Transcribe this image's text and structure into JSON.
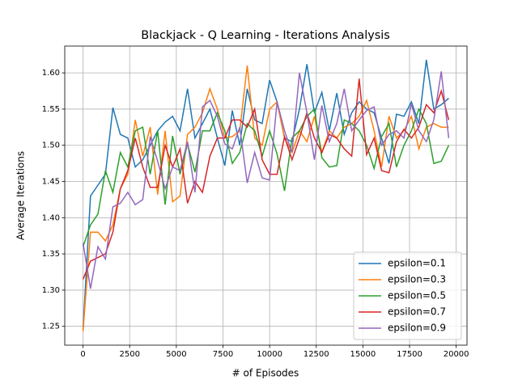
{
  "chart_data": {
    "type": "line",
    "title": "Blackjack - Q Learning - Iterations Analysis",
    "x_label": "# of Episodes",
    "y_label": "Average Iterations",
    "x": [
      0,
      400,
      800,
      1200,
      1600,
      2000,
      2400,
      2800,
      3200,
      3600,
      4000,
      4400,
      4800,
      5200,
      5600,
      6000,
      6400,
      6800,
      7200,
      7600,
      8000,
      8400,
      8800,
      9200,
      9600,
      10000,
      10400,
      10800,
      11200,
      11600,
      12000,
      12400,
      12800,
      13200,
      13600,
      14000,
      14400,
      14800,
      15200,
      15600,
      16000,
      16400,
      16800,
      17200,
      17600,
      18000,
      18400,
      18800,
      19200,
      19600
    ],
    "series": [
      {
        "name": "epsilon=0.1",
        "color": "#1f77b4",
        "values": [
          1.245,
          1.43,
          1.445,
          1.46,
          1.552,
          1.515,
          1.51,
          1.47,
          1.48,
          1.5,
          1.52,
          1.532,
          1.54,
          1.52,
          1.578,
          1.51,
          1.53,
          1.55,
          1.51,
          1.472,
          1.548,
          1.5,
          1.578,
          1.535,
          1.53,
          1.59,
          1.56,
          1.51,
          1.505,
          1.55,
          1.612,
          1.545,
          1.573,
          1.52,
          1.572,
          1.515,
          1.545,
          1.56,
          1.55,
          1.545,
          1.51,
          1.475,
          1.543,
          1.54,
          1.56,
          1.53,
          1.618,
          1.55,
          1.556,
          1.565
        ]
      },
      {
        "name": "epsilon=0.3",
        "color": "#ff7f0e",
        "values": [
          1.243,
          1.38,
          1.38,
          1.368,
          1.39,
          1.44,
          1.46,
          1.535,
          1.485,
          1.525,
          1.432,
          1.52,
          1.422,
          1.43,
          1.515,
          1.525,
          1.545,
          1.578,
          1.55,
          1.51,
          1.512,
          1.52,
          1.61,
          1.51,
          1.5,
          1.55,
          1.56,
          1.51,
          1.49,
          1.52,
          1.505,
          1.54,
          1.49,
          1.52,
          1.51,
          1.525,
          1.53,
          1.54,
          1.562,
          1.52,
          1.47,
          1.54,
          1.51,
          1.52,
          1.54,
          1.495,
          1.525,
          1.53,
          1.525,
          1.525
        ]
      },
      {
        "name": "epsilon=0.5",
        "color": "#2ca02c",
        "values": [
          1.36,
          1.39,
          1.405,
          1.465,
          1.435,
          1.49,
          1.47,
          1.52,
          1.525,
          1.46,
          1.52,
          1.418,
          1.513,
          1.46,
          1.502,
          1.463,
          1.52,
          1.52,
          1.545,
          1.52,
          1.475,
          1.49,
          1.53,
          1.52,
          1.485,
          1.52,
          1.488,
          1.437,
          1.51,
          1.52,
          1.54,
          1.55,
          1.483,
          1.47,
          1.472,
          1.535,
          1.53,
          1.52,
          1.5,
          1.468,
          1.512,
          1.53,
          1.47,
          1.5,
          1.52,
          1.55,
          1.53,
          1.475,
          1.478,
          1.5
        ]
      },
      {
        "name": "epsilon=0.7",
        "color": "#d62728",
        "values": [
          1.315,
          1.34,
          1.345,
          1.35,
          1.38,
          1.44,
          1.465,
          1.51,
          1.47,
          1.442,
          1.442,
          1.5,
          1.47,
          1.495,
          1.42,
          1.45,
          1.435,
          1.485,
          1.51,
          1.51,
          1.535,
          1.535,
          1.525,
          1.55,
          1.48,
          1.46,
          1.46,
          1.512,
          1.48,
          1.51,
          1.545,
          1.51,
          1.49,
          1.515,
          1.51,
          1.495,
          1.485,
          1.592,
          1.487,
          1.51,
          1.465,
          1.462,
          1.505,
          1.522,
          1.51,
          1.525,
          1.556,
          1.545,
          1.575,
          1.535
        ]
      },
      {
        "name": "epsilon=0.9",
        "color": "#9467bd",
        "values": [
          1.365,
          1.302,
          1.36,
          1.343,
          1.415,
          1.42,
          1.435,
          1.418,
          1.425,
          1.512,
          1.478,
          1.44,
          1.47,
          1.465,
          1.505,
          1.435,
          1.553,
          1.562,
          1.54,
          1.502,
          1.495,
          1.525,
          1.448,
          1.49,
          1.455,
          1.452,
          1.56,
          1.52,
          1.49,
          1.6,
          1.545,
          1.48,
          1.555,
          1.505,
          1.53,
          1.578,
          1.52,
          1.535,
          1.548,
          1.553,
          1.5,
          1.515,
          1.52,
          1.51,
          1.557,
          1.52,
          1.505,
          1.535,
          1.602,
          1.51
        ]
      }
    ],
    "xlim": [
      -980,
      20580
    ],
    "ylim": [
      1.224,
      1.637
    ],
    "xticks": [
      0,
      2500,
      5000,
      7500,
      10000,
      12500,
      15000,
      17500,
      20000
    ],
    "yticks": [
      1.25,
      {
        "value": 1.3,
        "label": "1.30"
      },
      1.35,
      {
        "value": 1.4,
        "label": "1.40"
      },
      1.45,
      {
        "value": 1.5,
        "label": "1.50"
      },
      1.55,
      {
        "value": 1.6,
        "label": "1.60"
      }
    ],
    "grid": true,
    "legend": "lower right"
  }
}
